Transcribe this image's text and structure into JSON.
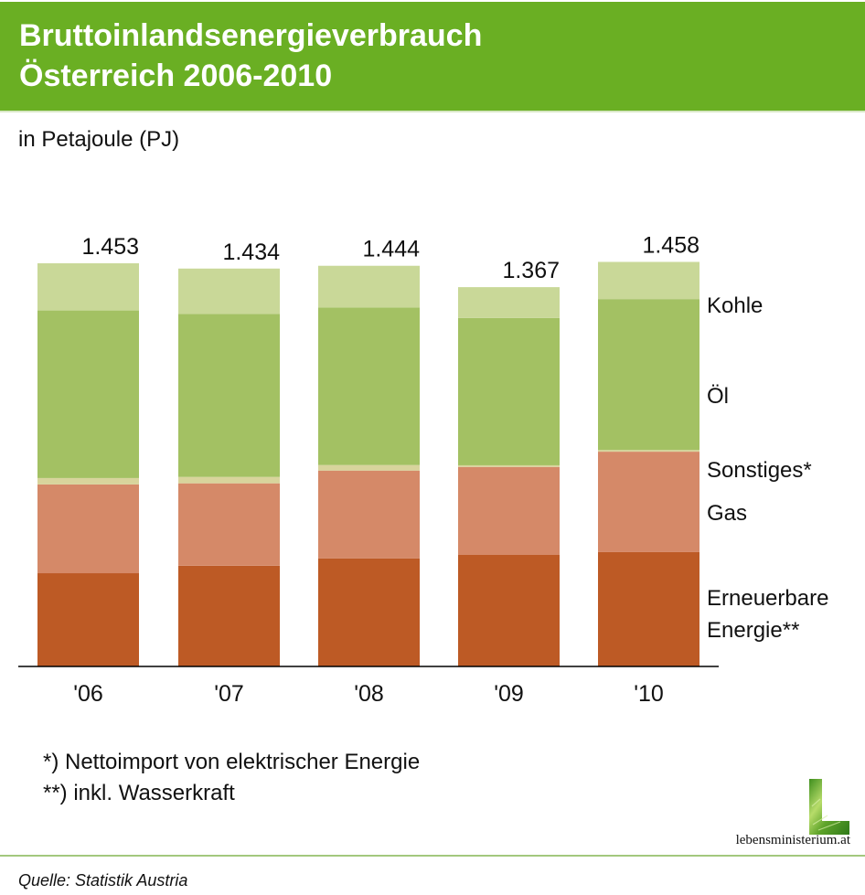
{
  "header": {
    "title_line1": "Bruttoinlandsenergieverbrauch",
    "title_line2": "Österreich 2006-2010",
    "background_color": "#6aaf23"
  },
  "subtitle": "in Petajoule (PJ)",
  "footnotes": [
    "*) Nettoimport von elektrischer Energie",
    "**) inkl. Wasserkraft"
  ],
  "logo": {
    "icon": "lebensministerium-L-logo",
    "text": "lebensministerium.at"
  },
  "source": "Quelle: Statistik Austria",
  "chart_data": {
    "type": "bar",
    "stacked": true,
    "title": "Bruttoinlandsenergieverbrauch Österreich 2006-2010",
    "subtitle": "in Petajoule (PJ)",
    "xlabel": "",
    "ylabel": "PJ",
    "ylim": [
      0,
      1460
    ],
    "grid": false,
    "legend_position": "right (labels beside last bar)",
    "categories": [
      "'06",
      "'07",
      "'08",
      "'09",
      "'10"
    ],
    "totals": [
      1453,
      1434,
      1444,
      1367,
      1458
    ],
    "total_labels": [
      "1.453",
      "1.434",
      "1.444",
      "1.367",
      "1.458"
    ],
    "series": [
      {
        "name": "Erneuerbare Energie**",
        "label_lines": [
          "Erneuerbare",
          "Energie**"
        ],
        "color": "#bd5a25",
        "values": [
          336,
          363,
          389,
          402,
          412
        ]
      },
      {
        "name": "Gas",
        "label_lines": [
          "Gas"
        ],
        "color": "#d58968",
        "values": [
          320,
          297,
          317,
          317,
          362
        ]
      },
      {
        "name": "Sonstiges*",
        "label_lines": [
          "Sonstiges*"
        ],
        "color": "#d8d49c",
        "values": [
          23,
          23,
          20,
          6,
          6
        ]
      },
      {
        "name": "Öl",
        "label_lines": [
          "Öl"
        ],
        "color": "#a3c163",
        "values": [
          604,
          587,
          568,
          531,
          544
        ]
      },
      {
        "name": "Kohle",
        "label_lines": [
          "Kohle"
        ],
        "color": "#c9d898",
        "values": [
          170,
          164,
          150,
          111,
          134
        ]
      }
    ]
  }
}
